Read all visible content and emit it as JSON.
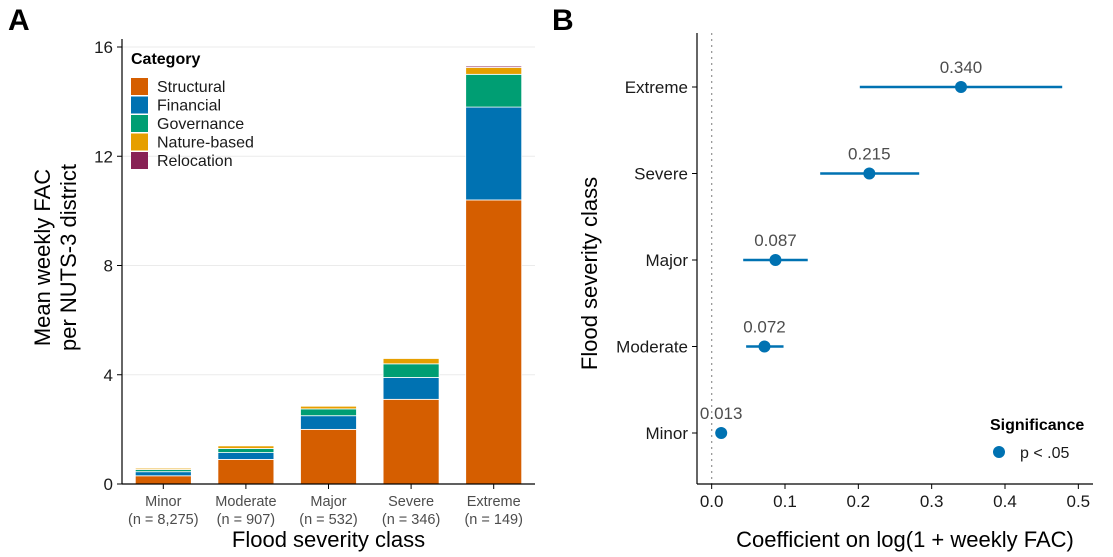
{
  "chart_data": [
    {
      "panel": "A",
      "type": "bar",
      "stacked": true,
      "xlabel": "Flood severity class",
      "ylabel": [
        "Mean weekly FAC",
        "per NUTS-3 district"
      ],
      "ylim": [
        0,
        16
      ],
      "yticks": [
        "0",
        "4",
        "8",
        "12",
        "16"
      ],
      "grid": true,
      "categories": [
        {
          "name": "Minor",
          "n": "(n = 8,275)"
        },
        {
          "name": "Moderate",
          "n": "(n = 907)"
        },
        {
          "name": "Major",
          "n": "(n = 532)"
        },
        {
          "name": "Severe",
          "n": "(n = 346)"
        },
        {
          "name": "Extreme",
          "n": "(n = 149)"
        }
      ],
      "legend": {
        "title": "Category",
        "position": "top-left"
      },
      "series": [
        {
          "name": "Structural",
          "color": "#D55E00",
          "values": [
            0.3,
            0.9,
            2.0,
            3.1,
            10.4
          ]
        },
        {
          "name": "Financial",
          "color": "#0072B2",
          "values": [
            0.15,
            0.25,
            0.5,
            0.8,
            3.4
          ]
        },
        {
          "name": "Governance",
          "color": "#009E73",
          "values": [
            0.08,
            0.15,
            0.25,
            0.5,
            1.2
          ]
        },
        {
          "name": "Nature-based",
          "color": "#E69F00",
          "values": [
            0.05,
            0.1,
            0.1,
            0.2,
            0.25
          ]
        },
        {
          "name": "Relocation",
          "color": "#882255",
          "values": [
            0.02,
            0.02,
            0.02,
            0.02,
            0.05
          ]
        }
      ]
    },
    {
      "panel": "B",
      "type": "scatter",
      "subtype": "coefficient-plot",
      "xlabel": "Coefficient on log(1 + weekly FAC)",
      "ylabel": "Flood severity class",
      "xlim": [
        -0.02,
        0.52
      ],
      "xticks": [
        "0.0",
        "0.1",
        "0.2",
        "0.3",
        "0.4",
        "0.5"
      ],
      "reference_line": 0,
      "color": "#0072B2",
      "points": [
        {
          "category": "Minor",
          "estimate": 0.013,
          "label": "0.013",
          "ci": [
            0.013,
            0.013
          ]
        },
        {
          "category": "Moderate",
          "estimate": 0.072,
          "label": "0.072",
          "ci": [
            0.047,
            0.098
          ]
        },
        {
          "category": "Major",
          "estimate": 0.087,
          "label": "0.087",
          "ci": [
            0.043,
            0.131
          ]
        },
        {
          "category": "Severe",
          "estimate": 0.215,
          "label": "0.215",
          "ci": [
            0.148,
            0.283
          ]
        },
        {
          "category": "Extreme",
          "estimate": 0.34,
          "label": "0.340",
          "ci": [
            0.202,
            0.478
          ]
        }
      ],
      "legend": {
        "title": "Significance",
        "entry": "p < .05",
        "position": "bottom-right"
      }
    }
  ],
  "panel_tags": {
    "a": "A",
    "b": "B"
  }
}
